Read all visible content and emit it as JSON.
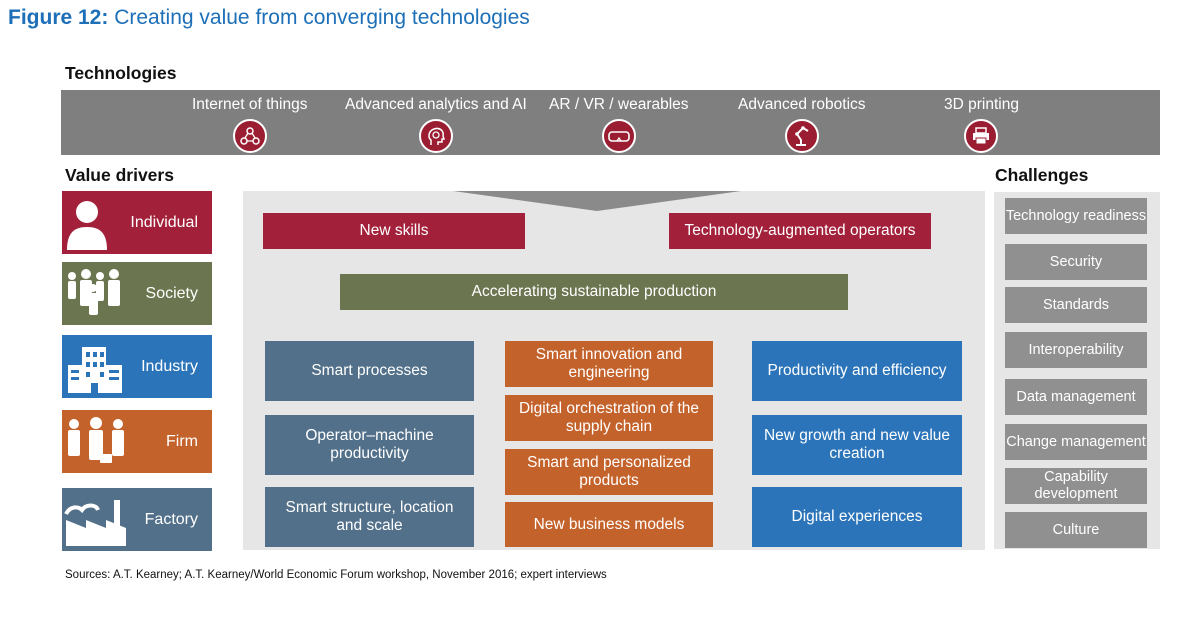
{
  "figure": {
    "number": "Figure 12:",
    "title": "Creating value from converging technologies"
  },
  "technologies": {
    "heading": "Technologies",
    "items": [
      {
        "label": "Internet of things",
        "icon": "network-icon"
      },
      {
        "label": "Advanced analytics and AI",
        "icon": "brain-head-icon"
      },
      {
        "label": "AR / VR / wearables",
        "icon": "vr-goggles-icon"
      },
      {
        "label": "Advanced robotics",
        "icon": "robot-arm-icon"
      },
      {
        "label": "3D printing",
        "icon": "printer-icon"
      }
    ]
  },
  "value_drivers": {
    "heading": "Value drivers",
    "items": [
      {
        "label": "Individual",
        "color": "#a3203a",
        "icon": "person-icon"
      },
      {
        "label": "Society",
        "color": "#6b7650",
        "icon": "crowd-icon"
      },
      {
        "label": "Industry",
        "color": "#2b74b9",
        "icon": "building-icon"
      },
      {
        "label": "Firm",
        "color": "#c4622b",
        "icon": "business-people-icon"
      },
      {
        "label": "Factory",
        "color": "#527089",
        "icon": "factory-icon"
      }
    ]
  },
  "center": {
    "row1": [
      "New skills",
      "Technology-augmented operators"
    ],
    "row2": "Accelerating sustainable production",
    "col_left": [
      "Smart processes",
      "Operator–machine productivity",
      "Smart structure, location and scale"
    ],
    "col_mid": [
      "Smart innovation and engineering",
      "Digital orchestration of the supply chain",
      "Smart and personalized products",
      "New business models"
    ],
    "col_right": [
      "Productivity and efficiency",
      "New growth and new value creation",
      "Digital experiences"
    ]
  },
  "challenges": {
    "heading": "Challenges",
    "items": [
      "Technology readiness",
      "Security",
      "Standards",
      "Interoperability",
      "Data management",
      "Change management",
      "Capability development",
      "Culture"
    ]
  },
  "sources": "Sources: A.T. Kearney; A.T. Kearney/World Economic Forum workshop, November 2016; expert interviews",
  "colors": {
    "title_blue": "#1d6fb8",
    "tech_bar": "#7f7f7f",
    "panel": "#e6e6e6",
    "challenge_box": "#909090"
  }
}
